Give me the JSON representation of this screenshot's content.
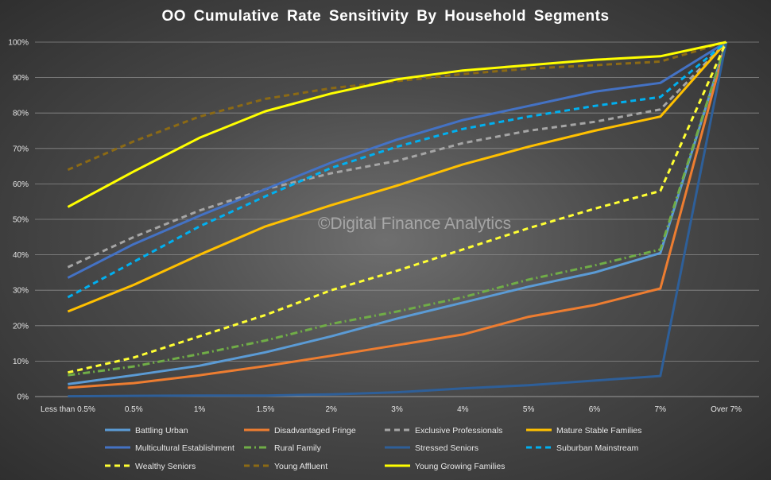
{
  "chart_data": {
    "type": "line",
    "title": "OO Cumulative  Rate Sensitivity  By Household  Segments",
    "watermark": "©Digital Finance Analytics",
    "categories": [
      "Less than 0.5%",
      "0.5%",
      "1%",
      "1.5%",
      "2%",
      "3%",
      "4%",
      "5%",
      "6%",
      "7%",
      "Over 7%"
    ],
    "ylim": [
      0,
      100
    ],
    "yticks": [
      "0%",
      "10%",
      "20%",
      "30%",
      "40%",
      "50%",
      "60%",
      "70%",
      "80%",
      "90%",
      "100%"
    ],
    "grid": true,
    "legend_position": "bottom",
    "series": [
      {
        "name": "Battling Urban",
        "color": "#5b9bd5",
        "dash": "solid",
        "values": [
          3.5,
          6,
          8.7,
          12.5,
          17,
          22,
          26.5,
          31,
          35,
          40.5,
          100
        ]
      },
      {
        "name": "Disadvantaged Fringe",
        "color": "#ed7d31",
        "dash": "solid",
        "values": [
          2.5,
          3.8,
          6,
          8.6,
          11.5,
          14.5,
          17.5,
          22.5,
          25.8,
          30.5,
          100
        ]
      },
      {
        "name": "Exclusive Professionals",
        "color": "#a5a5a5",
        "dash": "dash",
        "values": [
          36.5,
          45,
          52.5,
          58.5,
          63,
          66.5,
          71.5,
          75,
          77.5,
          81,
          100
        ]
      },
      {
        "name": "Mature Stable Families",
        "color": "#ffc000",
        "dash": "solid",
        "values": [
          24,
          31.5,
          40,
          48,
          54,
          59.5,
          65.5,
          70.5,
          75,
          79,
          100
        ]
      },
      {
        "name": "Multicultural Establishment",
        "color": "#4472c4",
        "dash": "solid",
        "values": [
          33.5,
          43,
          51,
          58.5,
          66,
          72.5,
          78,
          82,
          86,
          88.5,
          100
        ]
      },
      {
        "name": "Rural Family",
        "color": "#70ad47",
        "dash": "dashdot",
        "values": [
          6,
          8.5,
          12,
          15.8,
          20.5,
          24,
          28,
          33,
          37,
          41.5,
          100
        ]
      },
      {
        "name": "Stressed Seniors",
        "color": "#2e5f99",
        "dash": "solid",
        "values": [
          0.1,
          0.2,
          0.3,
          0.3,
          0.6,
          1.2,
          2.3,
          3.2,
          4.5,
          5.8,
          100
        ]
      },
      {
        "name": "Suburban Mainstream",
        "color": "#00b0f0",
        "dash": "dash",
        "values": [
          28,
          38,
          48,
          56.5,
          64.5,
          70.5,
          75.5,
          79,
          82,
          84.5,
          100
        ]
      },
      {
        "name": "Wealthy Seniors",
        "color": "#ffff33",
        "dash": "dash",
        "values": [
          6.8,
          11,
          17,
          23,
          30,
          35.5,
          41.5,
          47.5,
          53,
          58,
          100
        ]
      },
      {
        "name": "Young Affluent",
        "color": "#8c6a14",
        "dash": "dash",
        "values": [
          64,
          72,
          79,
          84,
          87,
          89,
          91,
          92.5,
          93.5,
          94.5,
          100
        ]
      },
      {
        "name": "Young Growing Families",
        "color": "#ffff00",
        "dash": "solid",
        "values": [
          53.5,
          63.5,
          73,
          80.5,
          85.5,
          89.5,
          92,
          93.5,
          95,
          96,
          100
        ]
      }
    ]
  }
}
